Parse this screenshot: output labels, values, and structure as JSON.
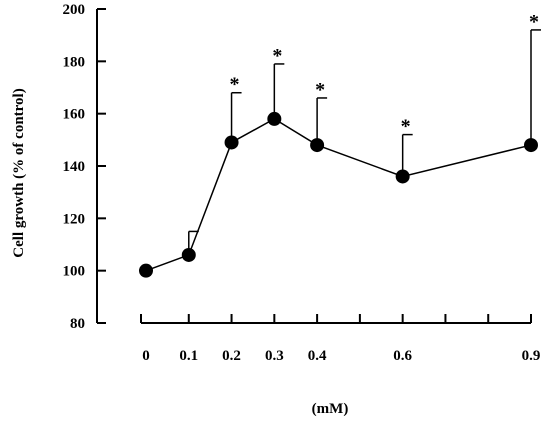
{
  "chart_data": {
    "type": "line",
    "title": "",
    "xlabel": "(mM)",
    "ylabel": "Cell growth (% of control)",
    "x": [
      0,
      0.1,
      0.2,
      0.3,
      0.4,
      0.6,
      0.9
    ],
    "x_tick_labels": [
      "0",
      "0.1",
      "0.2",
      "0.3",
      "0.4",
      "0.6",
      "0.9"
    ],
    "y_ticks": [
      80,
      100,
      120,
      140,
      160,
      180,
      200
    ],
    "ylim": [
      80,
      200
    ],
    "xlim": [
      -0.025,
      0.925
    ],
    "series": [
      {
        "values": [
          100,
          106,
          149,
          158,
          148,
          136,
          148
        ],
        "error_upper": [
          0,
          9,
          19,
          21,
          18,
          16,
          44
        ],
        "significant": [
          false,
          false,
          true,
          true,
          true,
          true,
          true
        ]
      }
    ],
    "significance_marker": "*",
    "grid": false,
    "legend": "none",
    "colors": {
      "line": "#000000",
      "marker": "#000000"
    }
  }
}
